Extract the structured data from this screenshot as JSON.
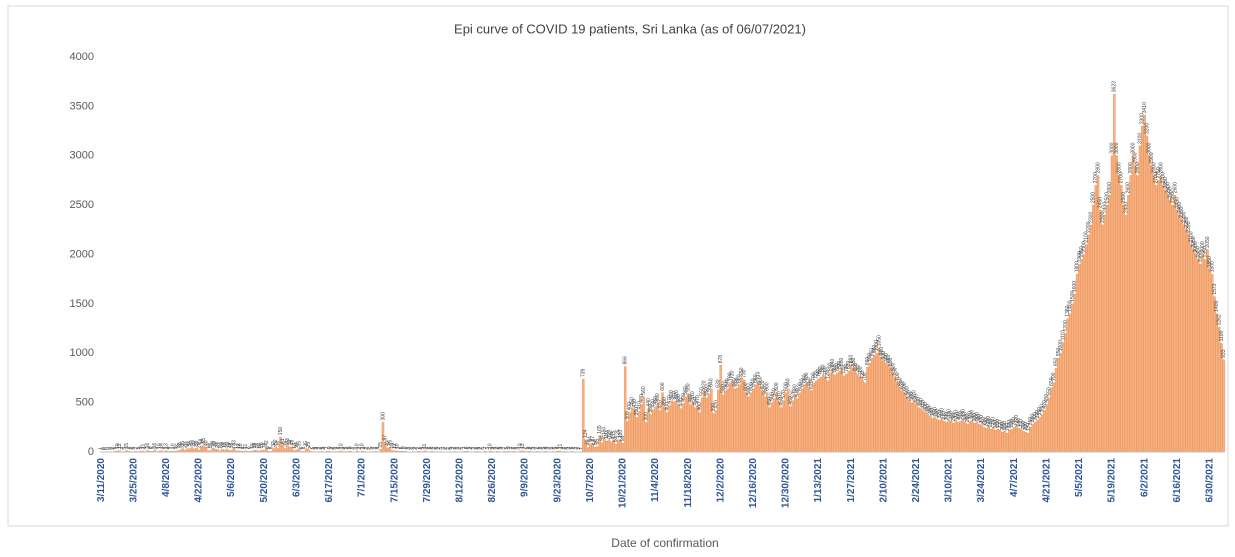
{
  "chart_data": {
    "type": "bar",
    "title": "Epi curve of COVID 19 patients, Sri Lanka  (as of 06/07/2021)",
    "x_label": "Date of confirmation",
    "color": "#f4b183",
    "ylim": [
      0,
      4000
    ],
    "yticks": [
      0,
      500,
      1000,
      1500,
      2000,
      2500,
      3000,
      3500,
      4000
    ],
    "grid": false,
    "categories": [
      "3/11/2020",
      null,
      null,
      null,
      null,
      null,
      null,
      null,
      null,
      null,
      null,
      null,
      null,
      null,
      "3/25/2020",
      null,
      null,
      null,
      null,
      null,
      null,
      null,
      null,
      null,
      null,
      null,
      null,
      null,
      "4/8/2020",
      null,
      null,
      null,
      null,
      null,
      null,
      null,
      null,
      null,
      null,
      null,
      null,
      null,
      "4/22/2020",
      null,
      null,
      null,
      null,
      null,
      null,
      null,
      null,
      null,
      null,
      null,
      null,
      null,
      "5/6/2020",
      null,
      null,
      null,
      null,
      null,
      null,
      null,
      null,
      null,
      null,
      null,
      null,
      null,
      "5/20/2020",
      null,
      null,
      null,
      null,
      null,
      null,
      null,
      null,
      null,
      null,
      null,
      null,
      null,
      "6/3/2020",
      null,
      null,
      null,
      null,
      null,
      null,
      null,
      null,
      null,
      null,
      null,
      null,
      null,
      "6/17/2020",
      null,
      null,
      null,
      null,
      null,
      null,
      null,
      null,
      null,
      null,
      null,
      null,
      null,
      "7/1/2020",
      null,
      null,
      null,
      null,
      null,
      null,
      null,
      null,
      null,
      null,
      null,
      null,
      null,
      "7/15/2020",
      null,
      null,
      null,
      null,
      null,
      null,
      null,
      null,
      null,
      null,
      null,
      null,
      null,
      "7/29/2020",
      null,
      null,
      null,
      null,
      null,
      null,
      null,
      null,
      null,
      null,
      null,
      null,
      null,
      "8/12/2020",
      null,
      null,
      null,
      null,
      null,
      null,
      null,
      null,
      null,
      null,
      null,
      null,
      null,
      "8/26/2020",
      null,
      null,
      null,
      null,
      null,
      null,
      null,
      null,
      null,
      null,
      null,
      null,
      null,
      "9/9/2020",
      null,
      null,
      null,
      null,
      null,
      null,
      null,
      null,
      null,
      null,
      null,
      null,
      null,
      "9/23/2020",
      null,
      null,
      null,
      null,
      null,
      null,
      null,
      null,
      null,
      null,
      null,
      null,
      null,
      "10/7/2020",
      null,
      null,
      null,
      null,
      null,
      null,
      null,
      null,
      null,
      null,
      null,
      null,
      null,
      "10/21/2020",
      null,
      null,
      null,
      null,
      null,
      null,
      null,
      null,
      null,
      null,
      null,
      null,
      null,
      "11/4/2020",
      null,
      null,
      null,
      null,
      null,
      null,
      null,
      null,
      null,
      null,
      null,
      null,
      null,
      "11/18/2020",
      null,
      null,
      null,
      null,
      null,
      null,
      null,
      null,
      null,
      null,
      null,
      null,
      null,
      "12/2/2020",
      null,
      null,
      null,
      null,
      null,
      null,
      null,
      null,
      null,
      null,
      null,
      null,
      null,
      "12/16/2020",
      null,
      null,
      null,
      null,
      null,
      null,
      null,
      null,
      null,
      null,
      null,
      null,
      null,
      "12/30/2020",
      null,
      null,
      null,
      null,
      null,
      null,
      null,
      null,
      null,
      null,
      null,
      null,
      null,
      "1/13/2021",
      null,
      null,
      null,
      null,
      null,
      null,
      null,
      null,
      null,
      null,
      null,
      null,
      null,
      "1/27/2021",
      null,
      null,
      null,
      null,
      null,
      null,
      null,
      null,
      null,
      null,
      null,
      null,
      null,
      "2/10/2021",
      null,
      null,
      null,
      null,
      null,
      null,
      null,
      null,
      null,
      null,
      null,
      null,
      null,
      "2/24/2021",
      null,
      null,
      null,
      null,
      null,
      null,
      null,
      null,
      null,
      null,
      null,
      null,
      null,
      "3/10/2021",
      null,
      null,
      null,
      null,
      null,
      null,
      null,
      null,
      null,
      null,
      null,
      null,
      null,
      "3/24/2021",
      null,
      null,
      null,
      null,
      null,
      null,
      null,
      null,
      null,
      null,
      null,
      null,
      null,
      "4/7/2021",
      null,
      null,
      null,
      null,
      null,
      null,
      null,
      null,
      null,
      null,
      null,
      null,
      null,
      "4/21/2021",
      null,
      null,
      null,
      null,
      null,
      null,
      null,
      null,
      null,
      null,
      null,
      null,
      null,
      "5/5/2021",
      null,
      null,
      null,
      null,
      null,
      null,
      null,
      null,
      null,
      null,
      null,
      null,
      null,
      "5/19/2021",
      null,
      null,
      null,
      null,
      null,
      null,
      null,
      null,
      null,
      null,
      null,
      null,
      null,
      "6/2/2021",
      null,
      null,
      null,
      null,
      null,
      null,
      null,
      null,
      null,
      null,
      null,
      null,
      null,
      "6/16/2021",
      null,
      null,
      null,
      null,
      null,
      null,
      null,
      null,
      null,
      null,
      null,
      null,
      null,
      "6/30/2021",
      null,
      null,
      null,
      null,
      null,
      null
    ],
    "values": [
      1,
      0,
      0,
      0,
      3,
      2,
      8,
      10,
      12,
      4,
      5,
      15,
      8,
      3,
      5,
      7,
      3,
      9,
      11,
      4,
      16,
      8,
      8,
      16,
      5,
      10,
      14,
      6,
      13,
      6,
      7,
      10,
      9,
      15,
      20,
      35,
      20,
      33,
      34,
      46,
      30,
      39,
      20,
      58,
      65,
      40,
      14,
      15,
      39,
      30,
      24,
      13,
      28,
      19,
      31,
      18,
      16,
      43,
      12,
      12,
      10,
      8,
      11,
      7,
      9,
      10,
      19,
      15,
      10,
      20,
      18,
      42,
      9,
      6,
      32,
      52,
      36,
      150,
      61,
      35,
      63,
      52,
      48,
      13,
      24,
      35,
      6,
      6,
      35,
      25,
      7,
      5,
      5,
      4,
      6,
      5,
      4,
      7,
      9,
      3,
      5,
      5,
      6,
      10,
      5,
      5,
      6,
      9,
      3,
      2,
      10,
      2,
      10,
      6,
      2,
      2,
      5,
      4,
      6,
      4,
      25,
      300,
      97,
      42,
      45,
      15,
      12,
      10,
      7,
      8,
      9,
      6,
      3,
      3,
      5,
      2,
      7,
      6,
      5,
      11,
      5,
      3,
      8,
      3,
      5,
      2,
      4,
      3,
      2,
      2,
      5,
      3,
      6,
      3,
      2,
      4,
      7,
      8,
      5,
      4,
      3,
      6,
      5,
      2,
      4,
      7,
      3,
      10,
      5,
      4,
      8,
      5,
      3,
      7,
      3,
      9,
      4,
      6,
      5,
      3,
      10,
      12,
      7,
      5,
      8,
      5,
      3,
      7,
      6,
      4,
      5,
      8,
      3,
      4,
      6,
      5,
      8,
      11,
      4,
      6,
      5,
      3,
      6,
      4,
      3,
      3,
      1,
      739,
      124,
      45,
      84,
      87,
      50,
      55,
      165,
      94,
      150,
      110,
      124,
      105,
      115,
      80,
      125,
      120,
      90,
      866,
      309,
      400,
      450,
      430,
      350,
      410,
      480,
      560,
      300,
      440,
      380,
      430,
      460,
      490,
      420,
      600,
      450,
      400,
      470,
      520,
      510,
      520,
      480,
      440,
      490,
      560,
      590,
      480,
      510,
      450,
      470,
      400,
      550,
      620,
      550,
      590,
      640,
      390,
      420,
      630,
      878,
      580,
      620,
      640,
      700,
      720,
      640,
      650,
      680,
      750,
      730,
      600,
      560,
      600,
      640,
      680,
      710,
      660,
      620,
      560,
      600,
      450,
      500,
      540,
      600,
      510,
      450,
      520,
      600,
      640,
      460,
      520,
      580,
      540,
      600,
      640,
      680,
      700,
      650,
      620,
      700,
      720,
      740,
      760,
      780,
      760,
      720,
      800,
      840,
      780,
      800,
      820,
      850,
      770,
      790,
      820,
      880,
      850,
      800,
      780,
      760,
      720,
      700,
      860,
      900,
      950,
      980,
      1000,
      1050,
      960,
      920,
      900,
      880,
      850,
      800,
      750,
      700,
      650,
      620,
      600,
      560,
      520,
      500,
      520,
      480,
      450,
      440,
      420,
      400,
      380,
      360,
      340,
      350,
      330,
      320,
      340,
      310,
      300,
      330,
      310,
      290,
      320,
      300,
      310,
      330,
      300,
      280,
      310,
      320,
      290,
      300,
      280,
      270,
      250,
      240,
      260,
      230,
      250,
      220,
      230,
      220,
      200,
      210,
      190,
      220,
      230,
      250,
      270,
      240,
      230,
      210,
      200,
      190,
      250,
      280,
      300,
      320,
      350,
      380,
      420,
      480,
      550,
      650,
      700,
      850,
      950,
      1000,
      1110,
      1200,
      1350,
      1400,
      1500,
      1600,
      1800,
      1900,
      1950,
      2000,
      2100,
      2200,
      2300,
      2500,
      2700,
      2800,
      2450,
      2300,
      2400,
      2500,
      2600,
      3000,
      3623,
      3000,
      2800,
      2700,
      2500,
      2400,
      2600,
      2800,
      3000,
      2900,
      2800,
      3100,
      3300,
      3410,
      3200,
      3000,
      2900,
      2800,
      2700,
      2750,
      2800,
      2700,
      2650,
      2600,
      2550,
      2500,
      2600,
      2450,
      2400,
      2350,
      2300,
      2250,
      2200,
      2100,
      2050,
      2000,
      1950,
      1900,
      2000,
      1950,
      2050,
      1850,
      1800,
      1573,
      1400,
      1262,
      1100,
      933
    ]
  }
}
